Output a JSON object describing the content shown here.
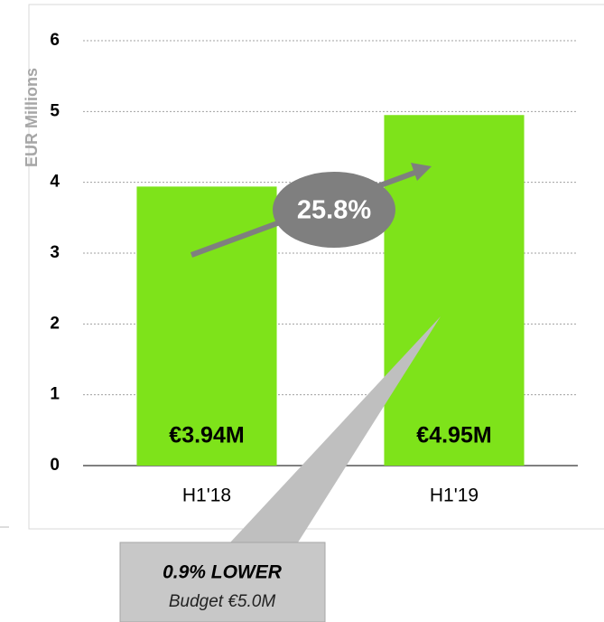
{
  "chart_data": {
    "type": "bar",
    "ylabel": "EUR Millions",
    "categories": [
      "H1'18",
      "H1'19"
    ],
    "values": [
      3.94,
      4.95
    ],
    "value_labels": [
      "€3.94M",
      "€4.95M"
    ],
    "color": "#7ee31a",
    "ylim": [
      0,
      6
    ],
    "yticks": [
      0,
      1,
      2,
      3,
      4,
      5,
      6
    ],
    "grid": true,
    "annotations": [
      "25.8%",
      "0.9% LOWER",
      "Budget €5.0M"
    ]
  }
}
